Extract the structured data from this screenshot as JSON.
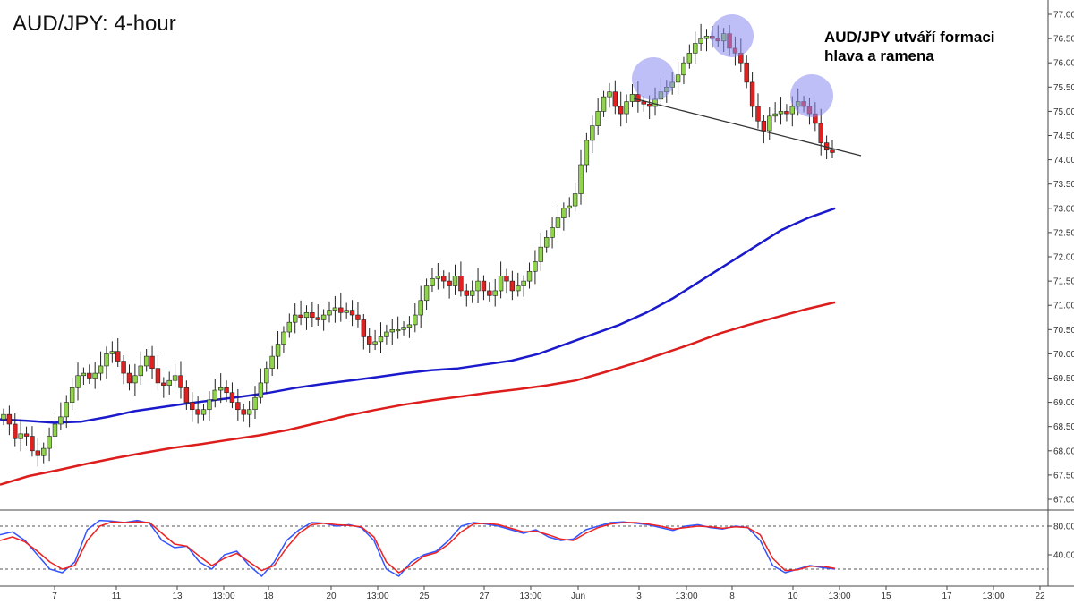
{
  "chart_data": {
    "type": "candlestick",
    "title": "AUD/JPY: 4-hour",
    "annotation": "AUD/JPY utváří formaci hlava a ramena",
    "price_axis": {
      "range": [
        66.9,
        77.2
      ],
      "ticks": [
        "77.000",
        "76.500",
        "76.000",
        "75.500",
        "75.000",
        "74.500",
        "74.000",
        "73.500",
        "73.000",
        "72.500",
        "72.000",
        "71.500",
        "71.000",
        "70.500",
        "70.000",
        "69.500",
        "69.000",
        "68.500",
        "68.000",
        "67.500",
        "67.000"
      ]
    },
    "oscillator_axis": {
      "range": [
        0,
        100
      ],
      "ticks": [
        "80.00",
        "40.00"
      ],
      "levels": [
        80,
        20
      ]
    },
    "x_ticks": [
      "7",
      "11",
      "13",
      "13:00",
      "18",
      "20",
      "13:00",
      "25",
      "27",
      "13:00",
      "Jun",
      "3",
      "13:00",
      "8",
      "10",
      "13:00",
      "15",
      "17",
      "13:00",
      "22"
    ],
    "close_series": [
      68.75,
      68.55,
      68.25,
      68.35,
      68.3,
      68.0,
      67.9,
      68.05,
      68.3,
      68.55,
      68.7,
      69.0,
      69.3,
      69.55,
      69.6,
      69.5,
      69.6,
      69.75,
      70.0,
      70.05,
      69.85,
      69.6,
      69.4,
      69.55,
      69.75,
      69.95,
      69.7,
      69.4,
      69.35,
      69.45,
      69.55,
      69.3,
      69.0,
      68.85,
      68.75,
      68.85,
      69.05,
      69.25,
      69.3,
      69.2,
      69.0,
      68.85,
      68.75,
      68.85,
      69.1,
      69.4,
      69.7,
      69.95,
      70.2,
      70.45,
      70.65,
      70.8,
      70.75,
      70.85,
      70.75,
      70.7,
      70.8,
      70.9,
      70.95,
      70.85,
      70.9,
      70.8,
      70.7,
      70.35,
      70.2,
      70.25,
      70.35,
      70.45,
      70.5,
      70.5,
      70.55,
      70.6,
      70.8,
      71.1,
      71.4,
      71.55,
      71.6,
      71.5,
      71.4,
      71.6,
      71.3,
      71.2,
      71.3,
      71.5,
      71.3,
      71.2,
      71.3,
      71.6,
      71.5,
      71.3,
      71.4,
      71.5,
      71.7,
      71.9,
      72.2,
      72.4,
      72.6,
      72.8,
      73.0,
      73.05,
      73.3,
      73.9,
      74.4,
      74.7,
      75.0,
      75.3,
      75.4,
      75.1,
      74.95,
      75.2,
      75.35,
      75.2,
      75.15,
      75.1,
      75.25,
      75.4,
      75.5,
      75.6,
      75.75,
      76.0,
      76.2,
      76.4,
      76.5,
      76.55,
      76.5,
      76.45,
      76.6,
      76.3,
      76.2,
      76.0,
      75.6,
      75.1,
      74.8,
      74.6,
      74.9,
      74.95,
      75.0,
      74.95,
      75.1,
      75.2,
      75.1,
      74.95,
      74.75,
      74.35,
      74.2,
      74.15
    ],
    "moving_averages": [
      {
        "color": "#1a1acc",
        "values": [
          68.65,
          68.62,
          68.58,
          68.6,
          68.7,
          68.82,
          68.9,
          68.98,
          69.05,
          69.12,
          69.2,
          69.3,
          69.38,
          69.45,
          69.52,
          69.6,
          69.66,
          69.7,
          69.78,
          69.86,
          70.0,
          70.2,
          70.4,
          70.6,
          70.85,
          71.15,
          71.5,
          71.85,
          72.2,
          72.55,
          72.8,
          73.0
        ]
      },
      {
        "color": "#dd1c1c",
        "values": [
          67.3,
          67.48,
          67.6,
          67.73,
          67.85,
          67.96,
          68.06,
          68.14,
          68.23,
          68.32,
          68.43,
          68.57,
          68.72,
          68.84,
          68.95,
          69.04,
          69.12,
          69.2,
          69.27,
          69.35,
          69.45,
          69.62,
          69.8,
          70.0,
          70.2,
          70.42,
          70.6,
          70.76,
          70.92,
          71.06
        ]
      }
    ],
    "oscillator_series": [
      {
        "color": "#3355ff",
        "values": [
          68,
          72,
          60,
          40,
          20,
          15,
          30,
          75,
          88,
          87,
          85,
          88,
          84,
          60,
          50,
          52,
          30,
          20,
          40,
          45,
          25,
          10,
          30,
          60,
          75,
          85,
          84,
          80,
          82,
          78,
          60,
          20,
          10,
          30,
          40,
          45,
          60,
          80,
          85,
          83,
          80,
          75,
          70,
          75,
          65,
          60,
          62,
          75,
          80,
          85,
          86,
          84,
          82,
          78,
          74,
          80,
          82,
          78,
          76,
          80,
          78,
          60,
          25,
          15,
          20,
          25,
          22,
          20
        ]
      },
      {
        "color": "#ee2222",
        "values": [
          60,
          65,
          58,
          45,
          30,
          20,
          25,
          60,
          80,
          86,
          85,
          86,
          85,
          70,
          55,
          52,
          38,
          25,
          35,
          42,
          30,
          18,
          25,
          50,
          70,
          82,
          84,
          82,
          81,
          79,
          65,
          30,
          15,
          25,
          38,
          43,
          55,
          72,
          83,
          84,
          82,
          77,
          72,
          73,
          68,
          62,
          60,
          70,
          78,
          83,
          85,
          85,
          83,
          80,
          76,
          78,
          80,
          79,
          77,
          79,
          78,
          68,
          35,
          18,
          19,
          24,
          24,
          21
        ]
      }
    ],
    "colors": {
      "bull": "#8fd44a",
      "bear": "#e22020",
      "highlight": "#8a8af0",
      "neckline": "#333333"
    },
    "grid": false
  }
}
